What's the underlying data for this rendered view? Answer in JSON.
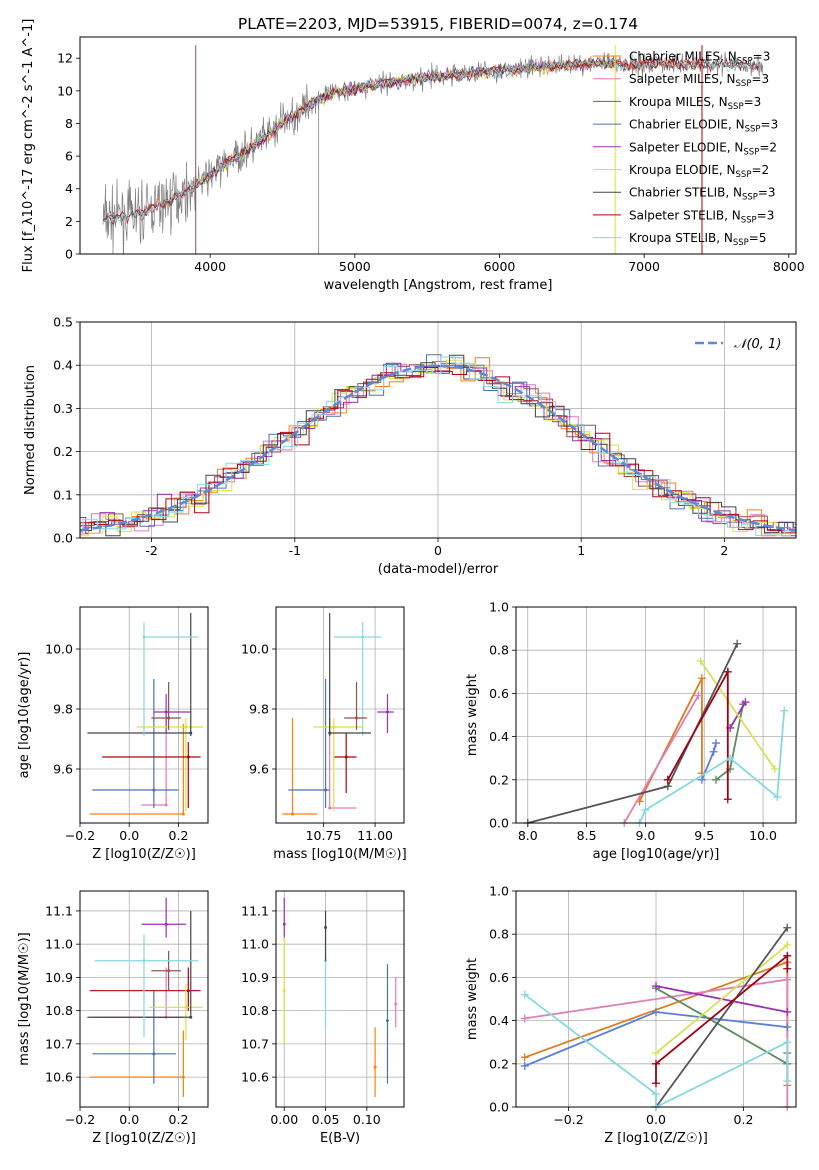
{
  "figure_title": "PLATE=2203, MJD=53915, FIBERID=0074, z=0.174",
  "colors": {
    "chabrier_miles": "#ff7f0e",
    "salpeter_miles": "#e377c2",
    "kroupa_miles": "#8c564b",
    "chabrier_elodie": "#4c72b0",
    "salpeter_elodie": "#9b30b0",
    "kroupa_elodie": "#dbe33a",
    "chabrier_stelib": "#444444",
    "salpeter_stelib": "#b00010",
    "kroupa_stelib": "#86d8e0",
    "pair_line_a": "#e07b20",
    "pair_line_b": "#e07fb8",
    "pair_line_c": "#5a7fd6",
    "pair_line_d": "#5f8a5f",
    "pair_line_e": "#9b30b0",
    "pair_line_f": "#d8e05a",
    "pair_line_g": "#555555",
    "pair_line_h": "#a00010",
    "pair_line_i": "#86d8e0",
    "gauss": "#5b8bd6"
  },
  "chart_data": [
    {
      "id": "spectrum",
      "type": "line",
      "xlabel": "wavelength [Angstrom, rest frame]",
      "ylabel": "Flux [f_λ10^-17 erg cm^-2 s^-1 A^-1]",
      "xlim": [
        3100,
        8050
      ],
      "ylim": [
        0,
        13.3
      ],
      "xticks": [
        4000,
        5000,
        6000,
        7000,
        8000
      ],
      "yticks": [
        0,
        2,
        4,
        6,
        8,
        10,
        12
      ],
      "legend_position": "top-right",
      "legend": [
        "Chabrier MILES, N_SSP=3",
        "Salpeter MILES, N_SSP=3",
        "Kroupa MILES, N_SSP=3",
        "Chabrier ELODIE, N_SSP=3",
        "Salpeter ELODIE, N_SSP=2",
        "Kroupa ELODIE, N_SSP=2",
        "Chabrier STELIB, N_SSP=3",
        "Salpeter STELIB, N_SSP=3",
        "Kroupa STELIB, N_SSP=5"
      ],
      "continuum_points": {
        "x": [
          3300,
          3500,
          3700,
          3900,
          4100,
          4300,
          4500,
          4700,
          4900,
          5100,
          5300,
          5500,
          5700,
          5900,
          6100,
          6300,
          6500,
          6700,
          6900,
          7100,
          7300,
          7500,
          7800
        ],
        "y": [
          2.2,
          2.4,
          3.2,
          4.2,
          5.5,
          6.6,
          8.0,
          9.3,
          10.0,
          10.3,
          10.6,
          10.8,
          11.0,
          11.2,
          11.3,
          11.5,
          11.6,
          11.7,
          11.6,
          11.7,
          11.6,
          11.7,
          11.5
        ]
      }
    },
    {
      "id": "residuals",
      "type": "histogram",
      "xlabel": "(data-model)/error",
      "ylabel": "Normed distribution",
      "xlim": [
        -2.5,
        2.5
      ],
      "ylim": [
        0,
        0.5
      ],
      "xticks": [
        -2,
        -1,
        0,
        1,
        2
      ],
      "yticks": [
        0.0,
        0.1,
        0.2,
        0.3,
        0.4,
        0.5
      ],
      "grid": true,
      "legend_position": "top-right",
      "legend": [
        "𝒩(0, 1)"
      ]
    },
    {
      "id": "age_vs_Z",
      "type": "scatter",
      "xlabel": "Z [log10(Z/Z☉)]",
      "ylabel": "age [log10(age/yr)]",
      "xlim": [
        -0.2,
        0.32
      ],
      "ylim": [
        9.42,
        10.14
      ],
      "xticks": [
        -0.2,
        0.0,
        0.2
      ],
      "yticks": [
        9.6,
        9.8,
        10.0
      ],
      "grid": true,
      "points": [
        {
          "x": 0.22,
          "y": 9.45,
          "xerr": [
            0.38,
            0.0
          ],
          "yerr": [
            0.0,
            0.3
          ],
          "c": "chabrier_miles"
        },
        {
          "x": 0.15,
          "y": 9.48,
          "xerr": [
            0.1,
            0.0
          ],
          "yerr": [
            0.0,
            0.3
          ],
          "c": "salpeter_miles"
        },
        {
          "x": 0.1,
          "y": 9.53,
          "xerr": [
            0.25,
            0.1
          ],
          "yerr": [
            0.06,
            0.37
          ],
          "c": "chabrier_elodie"
        },
        {
          "x": 0.15,
          "y": 9.79,
          "xerr": [
            0.05,
            0.1
          ],
          "yerr": [
            0.07,
            0.06
          ],
          "c": "salpeter_elodie"
        },
        {
          "x": 0.23,
          "y": 9.74,
          "xerr": [
            0.2,
            0.07
          ],
          "yerr": [
            0.28,
            0.03
          ],
          "c": "kroupa_elodie"
        },
        {
          "x": 0.25,
          "y": 9.72,
          "xerr": [
            0.42,
            0.0
          ],
          "yerr": [
            0.01,
            0.4
          ],
          "c": "chabrier_stelib"
        },
        {
          "x": 0.24,
          "y": 9.64,
          "xerr": [
            0.35,
            0.05
          ],
          "yerr": [
            0.17,
            0.05
          ],
          "c": "salpeter_stelib"
        },
        {
          "x": 0.16,
          "y": 9.77,
          "xerr": [
            0.07,
            0.05
          ],
          "yerr": [
            0.04,
            0.12
          ],
          "c": "kroupa_miles"
        },
        {
          "x": 0.06,
          "y": 10.04,
          "xerr": [
            0.0,
            0.22
          ],
          "yerr": [
            0.33,
            0.05
          ],
          "c": "kroupa_stelib"
        }
      ]
    },
    {
      "id": "age_vs_mass",
      "type": "scatter",
      "xlabel": "mass [log10(M/M☉)]",
      "ylabel": "",
      "xlim": [
        10.52,
        11.14
      ],
      "ylim": [
        9.42,
        10.14
      ],
      "xticks": [
        10.75,
        11.0
      ],
      "yticks": [
        9.6,
        9.8,
        10.0
      ],
      "grid": true,
      "points": [
        {
          "x": 10.6,
          "y": 9.45,
          "xerr": [
            0.05,
            0.12
          ],
          "yerr": [
            0.0,
            0.32
          ],
          "c": "chabrier_miles"
        },
        {
          "x": 10.76,
          "y": 9.53,
          "xerr": [
            0.18,
            0.02
          ],
          "yerr": [
            0.06,
            0.37
          ],
          "c": "chabrier_elodie"
        },
        {
          "x": 10.78,
          "y": 9.47,
          "xerr": [
            0.0,
            0.13
          ],
          "yerr": [
            0.0,
            0.3
          ],
          "c": "salpeter_miles"
        },
        {
          "x": 10.86,
          "y": 9.64,
          "xerr": [
            0.06,
            0.05
          ],
          "yerr": [
            0.12,
            0.08
          ],
          "c": "salpeter_stelib"
        },
        {
          "x": 10.8,
          "y": 9.74,
          "xerr": [
            0.1,
            0.14
          ],
          "yerr": [
            0.28,
            0.03
          ],
          "c": "kroupa_elodie"
        },
        {
          "x": 10.94,
          "y": 10.04,
          "xerr": [
            0.14,
            0.09
          ],
          "yerr": [
            0.33,
            0.05
          ],
          "c": "kroupa_stelib"
        },
        {
          "x": 10.91,
          "y": 9.77,
          "xerr": [
            0.06,
            0.05
          ],
          "yerr": [
            0.04,
            0.12
          ],
          "c": "kroupa_miles"
        },
        {
          "x": 10.78,
          "y": 9.72,
          "xerr": [
            0.0,
            0.2
          ],
          "yerr": [
            0.01,
            0.4
          ],
          "c": "chabrier_stelib"
        },
        {
          "x": 11.06,
          "y": 9.79,
          "xerr": [
            0.05,
            0.03
          ],
          "yerr": [
            0.07,
            0.06
          ],
          "c": "salpeter_elodie"
        }
      ]
    },
    {
      "id": "weight_vs_age",
      "type": "line",
      "xlabel": "age [log10(age/yr)]",
      "ylabel": "mass weight",
      "xlim": [
        7.9,
        10.28
      ],
      "ylim": [
        0,
        1.0
      ],
      "xticks": [
        8.0,
        8.5,
        9.0,
        9.5,
        10.0
      ],
      "yticks": [
        0.0,
        0.2,
        0.4,
        0.6,
        0.8,
        1.0
      ],
      "grid": true,
      "series": [
        {
          "c": "pair_line_a",
          "x": [
            8.95,
            9.48,
            9.48
          ],
          "y": [
            0.1,
            0.67,
            0.23
          ]
        },
        {
          "c": "pair_line_b",
          "x": [
            8.82,
            9.45
          ],
          "y": [
            0.0,
            0.59
          ]
        },
        {
          "c": "pair_line_c",
          "x": [
            9.48,
            9.58,
            9.6
          ],
          "y": [
            0.2,
            0.33,
            0.37
          ]
        },
        {
          "c": "pair_line_d",
          "x": [
            9.6,
            9.72,
            9.83
          ],
          "y": [
            0.2,
            0.25,
            0.55
          ]
        },
        {
          "c": "pair_line_e",
          "x": [
            9.72,
            9.85
          ],
          "y": [
            0.44,
            0.56
          ]
        },
        {
          "c": "pair_line_f",
          "x": [
            9.47,
            10.1
          ],
          "y": [
            0.75,
            0.25
          ]
        },
        {
          "c": "pair_line_g",
          "x": [
            8.0,
            9.19,
            9.78
          ],
          "y": [
            0.0,
            0.17,
            0.83
          ]
        },
        {
          "c": "pair_line_h",
          "x": [
            9.19,
            9.7,
            9.7
          ],
          "y": [
            0.2,
            0.7,
            0.11
          ]
        },
        {
          "c": "pair_line_i",
          "x": [
            8.95,
            9.0,
            9.72,
            10.12,
            10.18
          ],
          "y": [
            0.0,
            0.06,
            0.3,
            0.12,
            0.52
          ]
        }
      ]
    },
    {
      "id": "mass_vs_Z",
      "type": "scatter",
      "xlabel": "Z [log10(Z/Z☉)]",
      "ylabel": "mass [log10(M/M☉)]",
      "xlim": [
        -0.2,
        0.32
      ],
      "ylim": [
        10.51,
        11.16
      ],
      "xticks": [
        -0.2,
        0.0,
        0.2
      ],
      "yticks": [
        10.6,
        10.7,
        10.8,
        10.9,
        11.0,
        11.1
      ],
      "grid": true,
      "points": [
        {
          "x": 0.22,
          "y": 10.6,
          "xerr": [
            0.38,
            0.0
          ],
          "yerr": [
            0.06,
            0.14
          ],
          "c": "chabrier_miles"
        },
        {
          "x": 0.1,
          "y": 10.67,
          "xerr": [
            0.25,
            0.09
          ],
          "yerr": [
            0.09,
            0.19
          ],
          "c": "chabrier_elodie"
        },
        {
          "x": 0.15,
          "y": 10.78,
          "xerr": [
            0.3,
            0.07
          ],
          "yerr": [
            0.0,
            0.15
          ],
          "c": "salpeter_miles"
        },
        {
          "x": 0.24,
          "y": 10.86,
          "xerr": [
            0.4,
            0.05
          ],
          "yerr": [
            0.06,
            0.07
          ],
          "c": "salpeter_stelib"
        },
        {
          "x": 0.23,
          "y": 10.81,
          "xerr": [
            0.15,
            0.07
          ],
          "yerr": [
            0.1,
            0.07
          ],
          "c": "kroupa_elodie"
        },
        {
          "x": 0.25,
          "y": 10.78,
          "xerr": [
            0.42,
            0.0
          ],
          "yerr": [
            0.0,
            0.32
          ],
          "c": "chabrier_stelib"
        },
        {
          "x": 0.16,
          "y": 10.92,
          "xerr": [
            0.07,
            0.05
          ],
          "yerr": [
            0.06,
            0.06
          ],
          "c": "kroupa_miles"
        },
        {
          "x": 0.15,
          "y": 11.06,
          "xerr": [
            0.1,
            0.08
          ],
          "yerr": [
            0.04,
            0.08
          ],
          "c": "salpeter_elodie"
        },
        {
          "x": 0.06,
          "y": 10.95,
          "xerr": [
            0.2,
            0.22
          ],
          "yerr": [
            0.23,
            0.08
          ],
          "c": "kroupa_stelib"
        }
      ]
    },
    {
      "id": "mass_vs_ebv",
      "type": "scatter",
      "xlabel": "E(B-V)",
      "ylabel": "",
      "xlim": [
        -0.01,
        0.145
      ],
      "ylim": [
        10.51,
        11.16
      ],
      "xticks": [
        0.0,
        0.05,
        0.1
      ],
      "yticks": [
        10.6,
        10.7,
        10.8,
        10.9,
        11.0,
        11.1
      ],
      "grid": true,
      "points": [
        {
          "x": 0.0,
          "y": 10.86,
          "xerr": [
            0,
            0
          ],
          "yerr": [
            0.16,
            0.16
          ],
          "c": "kroupa_elodie"
        },
        {
          "x": 0.0,
          "y": 11.06,
          "xerr": [
            0,
            0
          ],
          "yerr": [
            0.04,
            0.08
          ],
          "c": "salpeter_elodie"
        },
        {
          "x": 0.05,
          "y": 10.95,
          "xerr": [
            0,
            0
          ],
          "yerr": [
            0.2,
            0.1
          ],
          "c": "kroupa_stelib"
        },
        {
          "x": 0.05,
          "y": 11.05,
          "xerr": [
            0,
            0
          ],
          "yerr": [
            0.1,
            0.05
          ],
          "c": "chabrier_stelib"
        },
        {
          "x": 0.11,
          "y": 10.63,
          "xerr": [
            0,
            0
          ],
          "yerr": [
            0.09,
            0.12
          ],
          "c": "chabrier_miles"
        },
        {
          "x": 0.125,
          "y": 10.77,
          "xerr": [
            0,
            0
          ],
          "yerr": [
            0.19,
            0.17
          ],
          "c": "chabrier_elodie"
        },
        {
          "x": 0.135,
          "y": 10.82,
          "xerr": [
            0,
            0
          ],
          "yerr": [
            0.07,
            0.08
          ],
          "c": "salpeter_miles"
        }
      ]
    },
    {
      "id": "weight_vs_Z",
      "type": "line",
      "xlabel": "Z [log10(Z/Z☉)]",
      "ylabel": "mass weight",
      "xlim": [
        -0.32,
        0.32
      ],
      "ylim": [
        0,
        1.0
      ],
      "xticks": [
        -0.2,
        0.0,
        0.2
      ],
      "yticks": [
        0.0,
        0.2,
        0.4,
        0.6,
        0.8,
        1.0
      ],
      "grid": true,
      "series": [
        {
          "c": "pair_line_a",
          "x": [
            -0.3,
            0.3,
            0.3
          ],
          "y": [
            0.23,
            0.67,
            0.1
          ]
        },
        {
          "c": "pair_line_b",
          "x": [
            -0.3,
            0.3,
            0.3
          ],
          "y": [
            0.41,
            0.59,
            0.0
          ]
        },
        {
          "c": "pair_line_c",
          "x": [
            -0.3,
            0.0,
            0.3
          ],
          "y": [
            0.19,
            0.44,
            0.37
          ]
        },
        {
          "c": "pair_line_d",
          "x": [
            0.0,
            0.3,
            0.3
          ],
          "y": [
            0.55,
            0.2,
            0.25
          ]
        },
        {
          "c": "pair_line_e",
          "x": [
            0.0,
            0.3
          ],
          "y": [
            0.56,
            0.44
          ]
        },
        {
          "c": "pair_line_f",
          "x": [
            0.0,
            0.3
          ],
          "y": [
            0.25,
            0.75
          ]
        },
        {
          "c": "pair_line_g",
          "x": [
            0.0,
            0.3
          ],
          "y": [
            0.0,
            0.83
          ]
        },
        {
          "c": "pair_line_h",
          "x": [
            0.0,
            0.0,
            0.3,
            0.3
          ],
          "y": [
            0.11,
            0.2,
            0.7,
            0.64
          ]
        },
        {
          "c": "pair_line_i",
          "x": [
            -0.3,
            0.0,
            0.0,
            0.3,
            0.3
          ],
          "y": [
            0.52,
            0.06,
            0.0,
            0.3,
            0.12
          ]
        }
      ]
    }
  ]
}
